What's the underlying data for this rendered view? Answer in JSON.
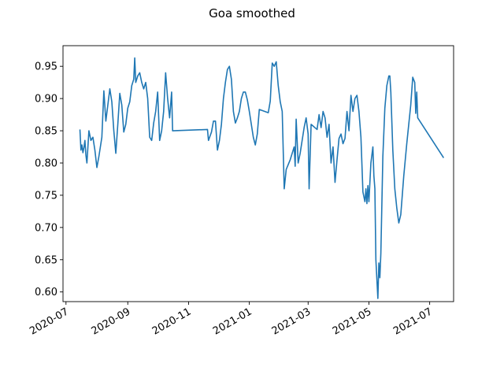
{
  "chart_data": {
    "type": "line",
    "title": "Goa smoothed",
    "xlabel": "",
    "ylabel": "",
    "x_tick_labels": [
      "2020-07",
      "2020-09",
      "2020-11",
      "2021-01",
      "2021-03",
      "2021-05",
      "2021-07"
    ],
    "y_tick_labels": [
      "0.60",
      "0.65",
      "0.70",
      "0.75",
      "0.80",
      "0.85",
      "0.90",
      "0.95"
    ],
    "xlim": [
      "2020-06-28",
      "2021-07-25"
    ],
    "ylim": [
      0.585,
      0.982
    ],
    "grid": false,
    "line_color": "#1f77b4",
    "series": [
      {
        "points": [
          [
            "2020-07-15",
            0.852
          ],
          [
            "2020-07-16",
            0.82
          ],
          [
            "2020-07-17",
            0.828
          ],
          [
            "2020-07-18",
            0.816
          ],
          [
            "2020-07-19",
            0.824
          ],
          [
            "2020-07-20",
            0.835
          ],
          [
            "2020-07-21",
            0.812
          ],
          [
            "2020-07-22",
            0.8
          ],
          [
            "2020-07-24",
            0.85
          ],
          [
            "2020-07-26",
            0.835
          ],
          [
            "2020-07-28",
            0.84
          ],
          [
            "2020-07-30",
            0.82
          ],
          [
            "2020-08-01",
            0.793
          ],
          [
            "2020-08-03",
            0.81
          ],
          [
            "2020-08-06",
            0.84
          ],
          [
            "2020-08-08",
            0.912
          ],
          [
            "2020-08-10",
            0.865
          ],
          [
            "2020-08-12",
            0.89
          ],
          [
            "2020-08-14",
            0.915
          ],
          [
            "2020-08-16",
            0.895
          ],
          [
            "2020-08-18",
            0.85
          ],
          [
            "2020-08-20",
            0.815
          ],
          [
            "2020-08-22",
            0.86
          ],
          [
            "2020-08-24",
            0.908
          ],
          [
            "2020-08-26",
            0.89
          ],
          [
            "2020-08-28",
            0.848
          ],
          [
            "2020-08-30",
            0.86
          ],
          [
            "2020-09-01",
            0.885
          ],
          [
            "2020-09-03",
            0.895
          ],
          [
            "2020-09-05",
            0.92
          ],
          [
            "2020-09-07",
            0.93
          ],
          [
            "2020-09-08",
            0.963
          ],
          [
            "2020-09-09",
            0.925
          ],
          [
            "2020-09-11",
            0.935
          ],
          [
            "2020-09-13",
            0.94
          ],
          [
            "2020-09-15",
            0.925
          ],
          [
            "2020-09-17",
            0.915
          ],
          [
            "2020-09-19",
            0.925
          ],
          [
            "2020-09-21",
            0.9
          ],
          [
            "2020-09-23",
            0.84
          ],
          [
            "2020-09-25",
            0.835
          ],
          [
            "2020-09-27",
            0.862
          ],
          [
            "2020-09-29",
            0.88
          ],
          [
            "2020-10-01",
            0.91
          ],
          [
            "2020-10-03",
            0.835
          ],
          [
            "2020-10-05",
            0.85
          ],
          [
            "2020-10-07",
            0.88
          ],
          [
            "2020-10-09",
            0.94
          ],
          [
            "2020-10-11",
            0.9
          ],
          [
            "2020-10-13",
            0.87
          ],
          [
            "2020-10-15",
            0.91
          ],
          [
            "2020-10-16",
            0.85
          ],
          [
            "2020-11-20",
            0.852
          ],
          [
            "2020-11-21",
            0.835
          ],
          [
            "2020-11-24",
            0.848
          ],
          [
            "2020-11-26",
            0.865
          ],
          [
            "2020-11-28",
            0.865
          ],
          [
            "2020-11-30",
            0.82
          ],
          [
            "2020-12-02",
            0.835
          ],
          [
            "2020-12-04",
            0.86
          ],
          [
            "2020-12-06",
            0.9
          ],
          [
            "2020-12-08",
            0.925
          ],
          [
            "2020-12-10",
            0.945
          ],
          [
            "2020-12-12",
            0.95
          ],
          [
            "2020-12-14",
            0.93
          ],
          [
            "2020-12-16",
            0.88
          ],
          [
            "2020-12-18",
            0.862
          ],
          [
            "2020-12-20",
            0.87
          ],
          [
            "2020-12-22",
            0.88
          ],
          [
            "2020-12-24",
            0.9
          ],
          [
            "2020-12-26",
            0.91
          ],
          [
            "2020-12-28",
            0.91
          ],
          [
            "2020-12-30",
            0.898
          ],
          [
            "2021-01-01",
            0.88
          ],
          [
            "2021-01-03",
            0.86
          ],
          [
            "2021-01-05",
            0.84
          ],
          [
            "2021-01-07",
            0.828
          ],
          [
            "2021-01-09",
            0.845
          ],
          [
            "2021-01-11",
            0.883
          ],
          [
            "2021-01-20",
            0.878
          ],
          [
            "2021-01-22",
            0.896
          ],
          [
            "2021-01-24",
            0.955
          ],
          [
            "2021-01-26",
            0.95
          ],
          [
            "2021-01-28",
            0.957
          ],
          [
            "2021-01-30",
            0.92
          ],
          [
            "2021-02-01",
            0.895
          ],
          [
            "2021-02-03",
            0.88
          ],
          [
            "2021-02-05",
            0.76
          ],
          [
            "2021-02-07",
            0.79
          ],
          [
            "2021-02-11",
            0.805
          ],
          [
            "2021-02-15",
            0.825
          ],
          [
            "2021-02-16",
            0.795
          ],
          [
            "2021-02-17",
            0.868
          ],
          [
            "2021-02-19",
            0.8
          ],
          [
            "2021-02-21",
            0.815
          ],
          [
            "2021-02-25",
            0.855
          ],
          [
            "2021-02-27",
            0.87
          ],
          [
            "2021-03-01",
            0.845
          ],
          [
            "2021-03-02",
            0.76
          ],
          [
            "2021-03-04",
            0.86
          ],
          [
            "2021-03-10",
            0.852
          ],
          [
            "2021-03-12",
            0.875
          ],
          [
            "2021-03-14",
            0.855
          ],
          [
            "2021-03-16",
            0.88
          ],
          [
            "2021-03-18",
            0.87
          ],
          [
            "2021-03-20",
            0.84
          ],
          [
            "2021-03-22",
            0.86
          ],
          [
            "2021-03-24",
            0.8
          ],
          [
            "2021-03-26",
            0.825
          ],
          [
            "2021-03-28",
            0.77
          ],
          [
            "2021-03-30",
            0.805
          ],
          [
            "2021-04-01",
            0.838
          ],
          [
            "2021-04-03",
            0.845
          ],
          [
            "2021-04-05",
            0.83
          ],
          [
            "2021-04-07",
            0.838
          ],
          [
            "2021-04-09",
            0.88
          ],
          [
            "2021-04-11",
            0.85
          ],
          [
            "2021-04-13",
            0.905
          ],
          [
            "2021-04-15",
            0.88
          ],
          [
            "2021-04-17",
            0.9
          ],
          [
            "2021-04-19",
            0.905
          ],
          [
            "2021-04-21",
            0.88
          ],
          [
            "2021-04-23",
            0.84
          ],
          [
            "2021-04-25",
            0.755
          ],
          [
            "2021-04-27",
            0.74
          ],
          [
            "2021-04-28",
            0.76
          ],
          [
            "2021-04-29",
            0.737
          ],
          [
            "2021-04-30",
            0.765
          ],
          [
            "2021-05-01",
            0.74
          ],
          [
            "2021-05-03",
            0.8
          ],
          [
            "2021-05-05",
            0.825
          ],
          [
            "2021-05-06",
            0.78
          ],
          [
            "2021-05-07",
            0.76
          ],
          [
            "2021-05-08",
            0.65
          ],
          [
            "2021-05-09",
            0.62
          ],
          [
            "2021-05-10",
            0.59
          ],
          [
            "2021-05-11",
            0.645
          ],
          [
            "2021-05-12",
            0.622
          ],
          [
            "2021-05-13",
            0.66
          ],
          [
            "2021-05-15",
            0.81
          ],
          [
            "2021-05-17",
            0.885
          ],
          [
            "2021-05-19",
            0.92
          ],
          [
            "2021-05-21",
            0.935
          ],
          [
            "2021-05-22",
            0.935
          ],
          [
            "2021-05-23",
            0.91
          ],
          [
            "2021-05-25",
            0.82
          ],
          [
            "2021-05-27",
            0.76
          ],
          [
            "2021-05-29",
            0.73
          ],
          [
            "2021-05-31",
            0.707
          ],
          [
            "2021-06-02",
            0.72
          ],
          [
            "2021-06-05",
            0.78
          ],
          [
            "2021-06-08",
            0.83
          ],
          [
            "2021-06-10",
            0.86
          ],
          [
            "2021-06-12",
            0.89
          ],
          [
            "2021-06-14",
            0.933
          ],
          [
            "2021-06-16",
            0.925
          ],
          [
            "2021-06-17",
            0.877
          ],
          [
            "2021-06-18",
            0.91
          ],
          [
            "2021-06-19",
            0.87
          ],
          [
            "2021-07-15",
            0.808
          ]
        ]
      }
    ]
  }
}
